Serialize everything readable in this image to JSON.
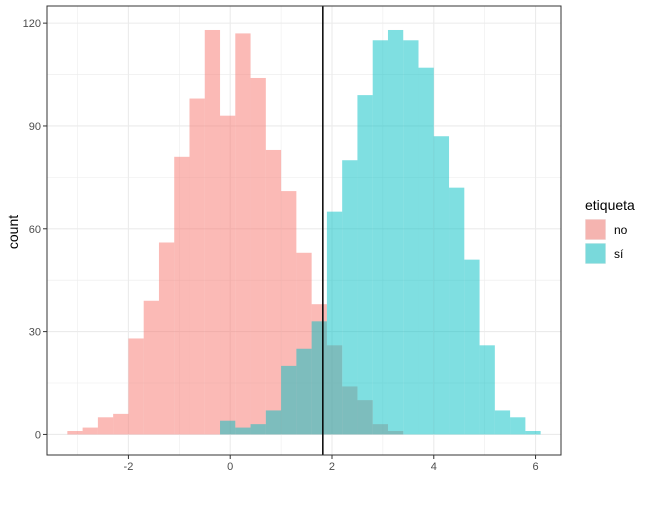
{
  "chart_data": {
    "type": "histogram",
    "xlabel": "",
    "ylabel": "count",
    "xlim": [
      -3.6,
      6.5
    ],
    "ylim": [
      -6,
      125
    ],
    "x_ticks": [
      -2,
      0,
      2,
      4,
      6
    ],
    "x_tick_labels": [
      "-2",
      "0",
      "2",
      "4",
      "6"
    ],
    "y_ticks": [
      0,
      30,
      60,
      90,
      120
    ],
    "y_tick_labels": [
      "0",
      "30",
      "60",
      "90",
      "120"
    ],
    "bin_width": 0.3,
    "grid": true,
    "vline": 1.82,
    "legend": {
      "title": "etiqueta",
      "position": "right",
      "entries": [
        {
          "label": "no",
          "color": "#F8766D"
        },
        {
          "label": "sí",
          "color": "#00BFC4"
        }
      ]
    },
    "series": [
      {
        "name": "no",
        "color": "#F8766D",
        "bins": [
          {
            "x0": -3.2,
            "x1": -2.9,
            "count": 1
          },
          {
            "x0": -2.9,
            "x1": -2.6,
            "count": 2
          },
          {
            "x0": -2.6,
            "x1": -2.3,
            "count": 5
          },
          {
            "x0": -2.3,
            "x1": -2.0,
            "count": 6
          },
          {
            "x0": -2.0,
            "x1": -1.7,
            "count": 28
          },
          {
            "x0": -1.7,
            "x1": -1.4,
            "count": 39
          },
          {
            "x0": -1.4,
            "x1": -1.1,
            "count": 56
          },
          {
            "x0": -1.1,
            "x1": -0.8,
            "count": 81
          },
          {
            "x0": -0.8,
            "x1": -0.5,
            "count": 98
          },
          {
            "x0": -0.5,
            "x1": -0.2,
            "count": 118
          },
          {
            "x0": -0.2,
            "x1": 0.1,
            "count": 93
          },
          {
            "x0": 0.1,
            "x1": 0.4,
            "count": 117
          },
          {
            "x0": 0.4,
            "x1": 0.7,
            "count": 104
          },
          {
            "x0": 0.7,
            "x1": 1.0,
            "count": 83
          },
          {
            "x0": 1.0,
            "x1": 1.3,
            "count": 71
          },
          {
            "x0": 1.3,
            "x1": 1.6,
            "count": 53
          },
          {
            "x0": 1.6,
            "x1": 1.9,
            "count": 38
          },
          {
            "x0": 1.9,
            "x1": 2.2,
            "count": 26
          },
          {
            "x0": 2.2,
            "x1": 2.5,
            "count": 14
          },
          {
            "x0": 2.5,
            "x1": 2.8,
            "count": 10
          },
          {
            "x0": 2.8,
            "x1": 3.1,
            "count": 3
          },
          {
            "x0": 3.1,
            "x1": 3.4,
            "count": 1
          }
        ]
      },
      {
        "name": "sí",
        "color": "#00BFC4",
        "bins": [
          {
            "x0": -0.2,
            "x1": 0.1,
            "count": 4
          },
          {
            "x0": 0.1,
            "x1": 0.4,
            "count": 2
          },
          {
            "x0": 0.4,
            "x1": 0.7,
            "count": 3
          },
          {
            "x0": 0.7,
            "x1": 1.0,
            "count": 7
          },
          {
            "x0": 1.0,
            "x1": 1.3,
            "count": 20
          },
          {
            "x0": 1.3,
            "x1": 1.6,
            "count": 25
          },
          {
            "x0": 1.6,
            "x1": 1.9,
            "count": 33
          },
          {
            "x0": 1.9,
            "x1": 2.2,
            "count": 65
          },
          {
            "x0": 2.2,
            "x1": 2.5,
            "count": 80
          },
          {
            "x0": 2.5,
            "x1": 2.8,
            "count": 99
          },
          {
            "x0": 2.8,
            "x1": 3.1,
            "count": 115
          },
          {
            "x0": 3.1,
            "x1": 3.4,
            "count": 118
          },
          {
            "x0": 3.4,
            "x1": 3.7,
            "count": 115
          },
          {
            "x0": 3.7,
            "x1": 4.0,
            "count": 107
          },
          {
            "x0": 4.0,
            "x1": 4.3,
            "count": 87
          },
          {
            "x0": 4.3,
            "x1": 4.6,
            "count": 72
          },
          {
            "x0": 4.6,
            "x1": 4.9,
            "count": 51
          },
          {
            "x0": 4.9,
            "x1": 5.2,
            "count": 26
          },
          {
            "x0": 5.2,
            "x1": 5.5,
            "count": 7
          },
          {
            "x0": 5.5,
            "x1": 5.8,
            "count": 5
          },
          {
            "x0": 5.8,
            "x1": 6.1,
            "count": 1
          }
        ]
      }
    ]
  }
}
